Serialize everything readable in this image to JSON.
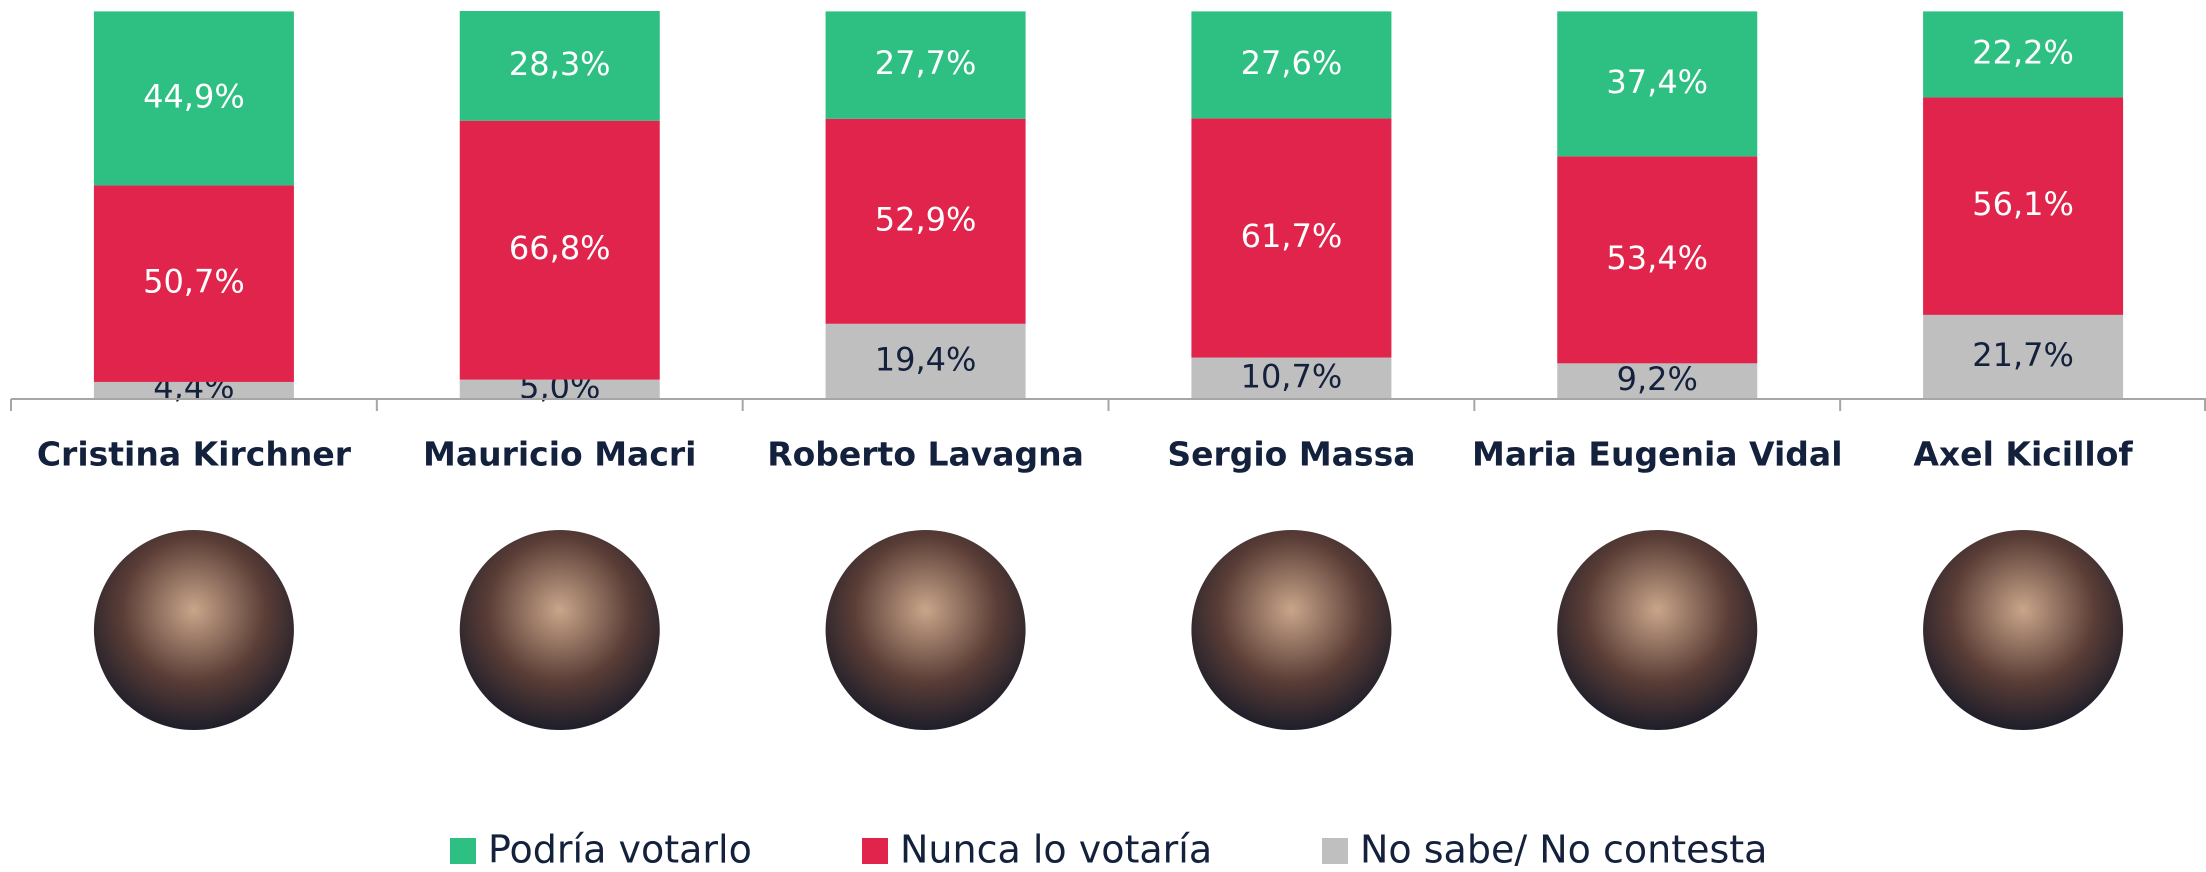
{
  "chart_data": {
    "type": "stacked_bar",
    "categories": [
      "Cristina Kirchner",
      "Mauricio Macri",
      "Roberto Lavagna",
      "Sergio Massa",
      "Maria Eugenia Vidal",
      "Axel Kicillof"
    ],
    "series": [
      {
        "name": "Podría votarlo",
        "color": "#2ebf82",
        "values": [
          44.9,
          28.3,
          27.7,
          27.6,
          37.4,
          22.2
        ],
        "value_labels": [
          "44,9%",
          "28,3%",
          "27,7%",
          "27,6%",
          "37,4%",
          "22,2%"
        ]
      },
      {
        "name": "Nunca lo votaría",
        "color": "#e0244b",
        "values": [
          50.7,
          66.8,
          52.9,
          61.7,
          53.4,
          56.1
        ],
        "value_labels": [
          "50,7%",
          "66,8%",
          "52,9%",
          "61,7%",
          "53,4%",
          "56,1%"
        ]
      },
      {
        "name": "No sabe/ No contesta",
        "color": "#bfbfbf",
        "values": [
          4.4,
          5.0,
          19.4,
          10.7,
          9.2,
          21.7
        ],
        "value_labels": [
          "4,4%",
          "5,0%",
          "19,4%",
          "10,7%",
          "9,2%",
          "21,7%"
        ]
      }
    ]
  }
}
